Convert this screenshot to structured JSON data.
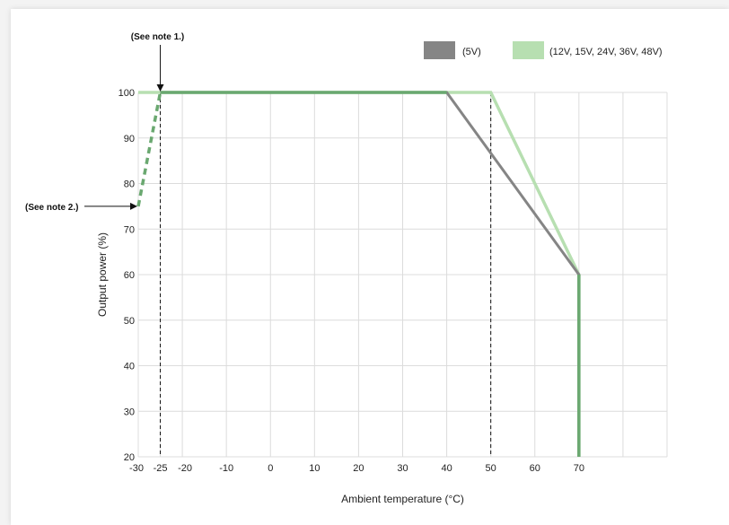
{
  "chart_data": {
    "type": "line",
    "xlabel": "Ambient temperature (°C)",
    "ylabel": "Output power (%)",
    "xlim": [
      -30,
      90
    ],
    "ylim": [
      20,
      100
    ],
    "x_ticks": [
      -30,
      -25,
      -20,
      -10,
      0,
      10,
      20,
      30,
      40,
      50,
      60,
      70
    ],
    "y_ticks": [
      20,
      30,
      40,
      50,
      60,
      70,
      80,
      90,
      100
    ],
    "grid": true,
    "legend_position": "top-right",
    "series": [
      {
        "name": "(5V)",
        "color": "#858585",
        "points": [
          [
            -25,
            100
          ],
          [
            40,
            100
          ],
          [
            70,
            60
          ],
          [
            70,
            20
          ]
        ]
      },
      {
        "name": "(12V, 15V, 24V, 36V, 48V)",
        "color": "#b7dfb1",
        "points": [
          [
            -25,
            100
          ],
          [
            50,
            100
          ],
          [
            70,
            60
          ],
          [
            70,
            20
          ]
        ]
      }
    ],
    "overlap_color": "#6aa870",
    "dashed_segment": {
      "points": [
        [
          -30,
          75
        ],
        [
          -25,
          100
        ]
      ],
      "color": "#6aa870"
    },
    "reference_lines_x": [
      -25,
      50
    ],
    "annotations": [
      {
        "text": "(See note 1.)",
        "target": [
          -25,
          100
        ]
      },
      {
        "text": "(See note 2.)",
        "target": [
          -30,
          75
        ]
      }
    ]
  }
}
